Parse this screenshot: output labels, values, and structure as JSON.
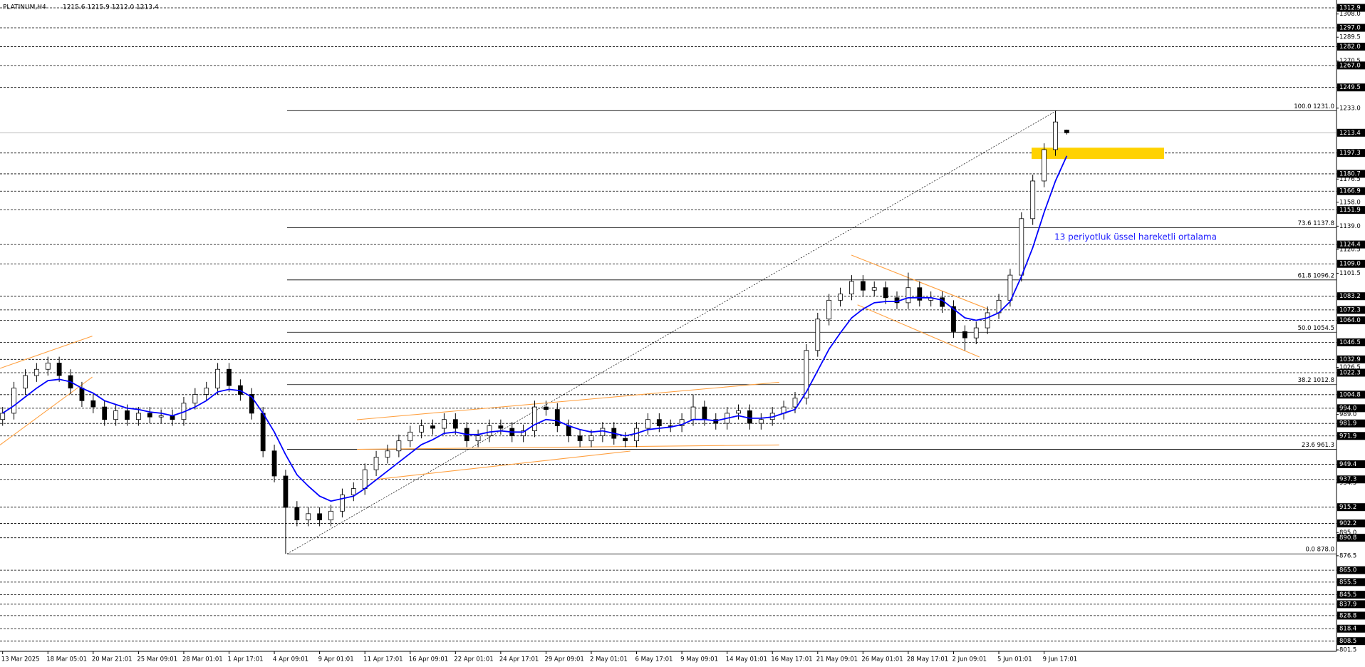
{
  "header": {
    "symbol": "PLATINUM,H4",
    "ohlc": "1215.6 1215.9 1212.0 1213.4"
  },
  "chart_data": {
    "type": "candlestick",
    "categories": [
      "13 Mar 2025",
      null,
      null,
      null,
      "18 Mar 05:01",
      null,
      null,
      null,
      "20 Mar 21:01",
      null,
      null,
      null,
      "25 Mar 09:01",
      null,
      null,
      null,
      "28 Mar 01:01",
      null,
      null,
      null,
      "1 Apr 17:01",
      null,
      null,
      null,
      "4 Apr 09:01",
      null,
      null,
      null,
      "9 Apr 01:01",
      null,
      null,
      null,
      "11 Apr 17:01",
      null,
      null,
      null,
      "16 Apr 09:01",
      null,
      null,
      null,
      "22 Apr 01:01",
      null,
      null,
      null,
      "24 Apr 17:01",
      null,
      null,
      null,
      "29 Apr 09:01",
      null,
      null,
      null,
      "2 May 01:01",
      null,
      null,
      null,
      "6 May 17:01",
      null,
      null,
      null,
      "9 May 09:01",
      null,
      null,
      null,
      "14 May 01:01",
      null,
      null,
      null,
      "16 May 17:01",
      null,
      null,
      null,
      "21 May 09:01",
      null,
      null,
      null,
      "26 May 01:01",
      null,
      null,
      null,
      "28 May 17:01",
      null,
      null,
      null,
      "2 Jun 09:01",
      null,
      null,
      null,
      "5 Jun 01:01",
      null,
      null,
      null,
      "9 Jun 17:01",
      null,
      null
    ],
    "open": [
      985,
      990,
      1010,
      1020,
      1025,
      1030,
      1020,
      1010,
      1000,
      995,
      985,
      992,
      985,
      990,
      987,
      988,
      985,
      998,
      1005,
      1010,
      1025,
      1012,
      1005,
      990,
      960,
      940,
      915,
      905,
      910,
      905,
      912,
      925,
      930,
      945,
      955,
      960,
      968,
      975,
      980,
      978,
      985,
      978,
      968,
      972,
      980,
      978,
      972,
      976,
      995,
      993,
      980,
      972,
      968,
      972,
      978,
      970,
      968,
      978,
      985,
      980,
      980,
      985,
      995,
      985,
      982,
      990,
      992,
      982,
      985,
      990,
      995,
      1002,
      1040,
      1065,
      1080,
      1085,
      1095,
      1088,
      1090,
      1082,
      1078,
      1090,
      1080,
      1082,
      1075,
      1055,
      1050,
      1058,
      1070,
      1080,
      1100,
      1145,
      1175,
      1200,
      1215.6
    ],
    "high": [
      995,
      1015,
      1025,
      1030,
      1035,
      1035,
      1025,
      1015,
      1005,
      1000,
      997,
      997,
      995,
      995,
      993,
      993,
      1003,
      1010,
      1015,
      1030,
      1030,
      1017,
      1010,
      995,
      965,
      945,
      920,
      915,
      915,
      917,
      930,
      935,
      950,
      960,
      965,
      973,
      980,
      985,
      985,
      990,
      990,
      983,
      977,
      985,
      985,
      983,
      981,
      1000,
      1000,
      998,
      985,
      977,
      977,
      983,
      983,
      975,
      983,
      990,
      990,
      985,
      990,
      1005,
      1000,
      990,
      995,
      997,
      997,
      990,
      995,
      1000,
      1007,
      1045,
      1070,
      1085,
      1090,
      1100,
      1100,
      1095,
      1095,
      1087,
      1102,
      1095,
      1087,
      1087,
      1080,
      1060,
      1063,
      1075,
      1085,
      1105,
      1150,
      1180,
      1205,
      1231,
      1215.9
    ],
    "low": [
      980,
      985,
      1005,
      1015,
      1020,
      1015,
      1005,
      995,
      990,
      980,
      980,
      980,
      980,
      982,
      982,
      980,
      980,
      993,
      1000,
      1005,
      1007,
      1000,
      985,
      955,
      935,
      878,
      900,
      900,
      900,
      900,
      907,
      920,
      925,
      940,
      950,
      955,
      963,
      970,
      973,
      973,
      973,
      963,
      963,
      967,
      973,
      967,
      967,
      971,
      988,
      975,
      967,
      963,
      963,
      967,
      965,
      963,
      963,
      973,
      975,
      975,
      975,
      980,
      980,
      977,
      977,
      985,
      977,
      977,
      980,
      985,
      990,
      997,
      1035,
      1060,
      1075,
      1080,
      1083,
      1083,
      1077,
      1073,
      1073,
      1075,
      1075,
      1070,
      1050,
      1040,
      1045,
      1053,
      1065,
      1075,
      1095,
      1140,
      1170,
      1195,
      1212
    ],
    "close": [
      990,
      1010,
      1020,
      1025,
      1030,
      1020,
      1010,
      1000,
      995,
      985,
      992,
      985,
      990,
      987,
      988,
      985,
      998,
      1005,
      1010,
      1025,
      1012,
      1005,
      990,
      960,
      940,
      915,
      905,
      910,
      905,
      912,
      925,
      930,
      945,
      955,
      960,
      968,
      975,
      980,
      978,
      985,
      978,
      968,
      972,
      980,
      978,
      972,
      976,
      995,
      993,
      980,
      972,
      968,
      972,
      978,
      970,
      968,
      978,
      985,
      980,
      980,
      985,
      995,
      985,
      982,
      990,
      992,
      982,
      985,
      990,
      995,
      1002,
      1040,
      1065,
      1080,
      1085,
      1095,
      1088,
      1090,
      1082,
      1078,
      1090,
      1080,
      1082,
      1075,
      1055,
      1050,
      1058,
      1070,
      1080,
      1100,
      1145,
      1175,
      1200,
      1222,
      1213.4
    ],
    "ema": {
      "color": "#0000ff",
      "values": [
        990,
        996,
        1003,
        1010,
        1016,
        1017,
        1015,
        1010,
        1006,
        1000,
        997,
        994,
        993,
        991,
        990,
        988,
        991,
        995,
        1000,
        1007,
        1009,
        1008,
        1003,
        990,
        975,
        957,
        941,
        932,
        924,
        920,
        922,
        924,
        930,
        937,
        944,
        951,
        958,
        965,
        969,
        974,
        975,
        973,
        973,
        975,
        976,
        975,
        975,
        981,
        985,
        984,
        980,
        977,
        975,
        976,
        974,
        972,
        974,
        977,
        978,
        979,
        981,
        985,
        985,
        984,
        986,
        988,
        986,
        986,
        987,
        990,
        993,
        1007,
        1024,
        1041,
        1054,
        1066,
        1073,
        1078,
        1079,
        1079,
        1082,
        1082,
        1082,
        1080,
        1073,
        1066,
        1064,
        1066,
        1070,
        1079,
        1099,
        1122,
        1150,
        1175,
        1195
      ]
    },
    "ema_label": "13 periyotluk üssel hareketli ortalama",
    "ylim": [
      801.5,
      1312.9
    ],
    "yticks": [
      {
        "value": 1308.0,
        "label": "1308.0"
      },
      {
        "value": 1289.5,
        "label": "1289.5"
      },
      {
        "value": 1270.5,
        "label": "1270.5"
      },
      {
        "value": 1233.0,
        "label": "1233.0"
      },
      {
        "value": 1176.5,
        "label": "1176.5"
      },
      {
        "value": 1158.0,
        "label": "1158.0"
      },
      {
        "value": 1139.0,
        "label": "1139.0"
      },
      {
        "value": 1120.5,
        "label": "1120.5"
      },
      {
        "value": 1101.5,
        "label": "1101.5"
      },
      {
        "value": 1026.5,
        "label": "1026.5"
      },
      {
        "value": 989.0,
        "label": "989.0"
      },
      {
        "value": 934.5,
        "label": "934.5"
      },
      {
        "value": 895.0,
        "label": "895.0"
      },
      {
        "value": 876.5,
        "label": "876.5"
      },
      {
        "value": 801.5,
        "label": "801.5"
      }
    ],
    "levels": [
      {
        "value": 1312.9,
        "label": "1312.9"
      },
      {
        "value": 1297.0,
        "label": "1297.0"
      },
      {
        "value": 1282.0,
        "label": "1282.0"
      },
      {
        "value": 1267.0,
        "label": "1267.0"
      },
      {
        "value": 1249.5,
        "label": "1249.5"
      },
      {
        "value": 1197.3,
        "label": "1197.3"
      },
      {
        "value": 1180.7,
        "label": "1180.7"
      },
      {
        "value": 1166.9,
        "label": "1166.9"
      },
      {
        "value": 1151.9,
        "label": "1151.9"
      },
      {
        "value": 1124.4,
        "label": "1124.4"
      },
      {
        "value": 1109.0,
        "label": "1109.0"
      },
      {
        "value": 1083.2,
        "label": "1083.2"
      },
      {
        "value": 1072.3,
        "label": "1072.3"
      },
      {
        "value": 1064.0,
        "label": "1064.0"
      },
      {
        "value": 1046.5,
        "label": "1046.5"
      },
      {
        "value": 1032.9,
        "label": "1032.9"
      },
      {
        "value": 1022.3,
        "label": "1022.3"
      },
      {
        "value": 1004.8,
        "label": "1004.8"
      },
      {
        "value": 994.0,
        "label": "994.0"
      },
      {
        "value": 981.9,
        "label": "981.9"
      },
      {
        "value": 971.9,
        "label": "971.9"
      },
      {
        "value": 949.4,
        "label": "949.4"
      },
      {
        "value": 937.3,
        "label": "937.3"
      },
      {
        "value": 915.2,
        "label": "915.2"
      },
      {
        "value": 902.2,
        "label": "902.2"
      },
      {
        "value": 890.8,
        "label": "890.8"
      },
      {
        "value": 865.0,
        "label": "865.0"
      },
      {
        "value": 855.5,
        "label": "855.5"
      },
      {
        "value": 845.5,
        "label": "845.5"
      },
      {
        "value": 837.9,
        "label": "837.9"
      },
      {
        "value": 828.8,
        "label": "828.8"
      },
      {
        "value": 818.4,
        "label": "818.4"
      },
      {
        "value": 808.5,
        "label": "808.5"
      }
    ],
    "current_price": {
      "value": 1213.4,
      "label": "1213.4"
    },
    "fibonacci": [
      {
        "value": 1231.0,
        "label": "100.0 1231.0"
      },
      {
        "value": 1137.8,
        "label": "73.6 1137.8"
      },
      {
        "value": 1096.2,
        "label": "61.8 1096.2"
      },
      {
        "value": 1054.5,
        "label": "50.0 1054.5"
      },
      {
        "value": 1012.8,
        "label": "38.2 1012.8"
      },
      {
        "value": 961.3,
        "label": "23.6 961.3"
      },
      {
        "value": 878.0,
        "label": "0.0 878.0"
      }
    ],
    "zone": {
      "color": "#ffd200",
      "range": [
        1192.5,
        1201.5
      ]
    }
  }
}
